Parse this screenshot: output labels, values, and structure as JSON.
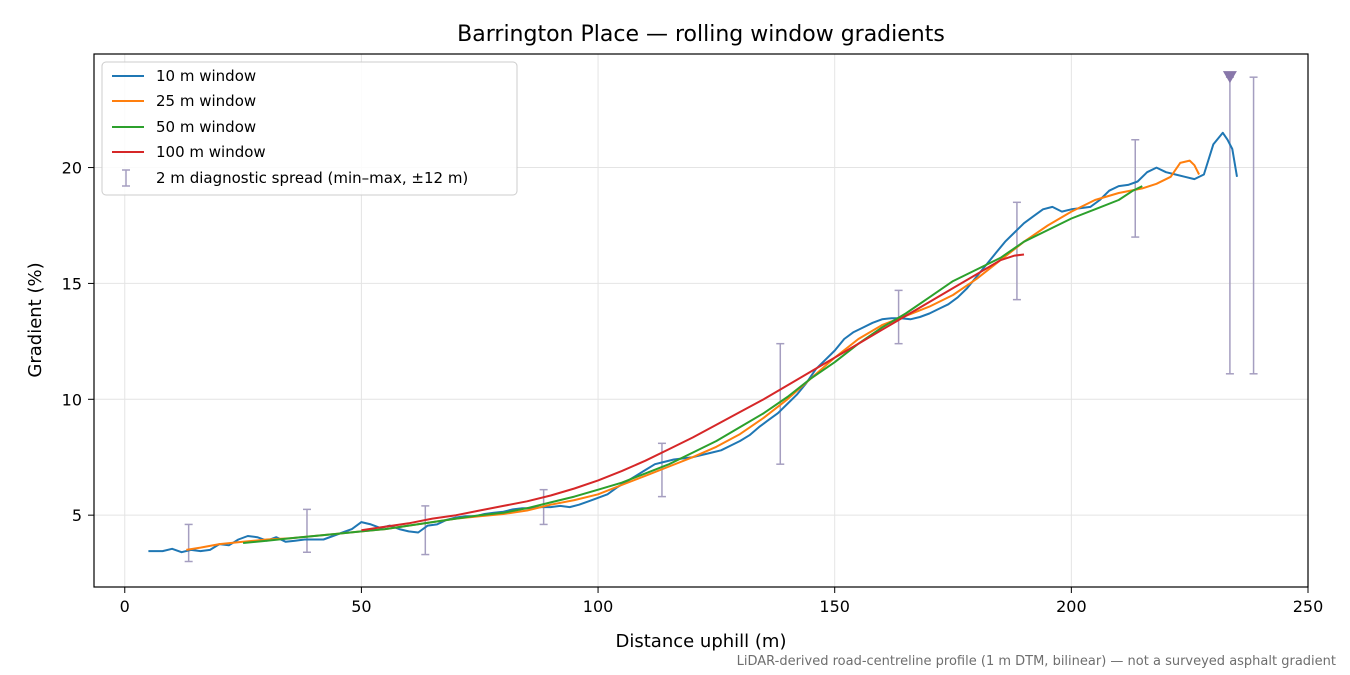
{
  "chart_data": {
    "type": "line",
    "title": "Barrington Place — rolling window gradients",
    "xlabel": "Distance uphill (m)",
    "ylabel": "Gradient (%)",
    "xlim": [
      -6.5,
      250
    ],
    "ylim": [
      1.9,
      24.9
    ],
    "x_ticks": [
      0,
      50,
      100,
      150,
      200,
      250
    ],
    "y_ticks": [
      5,
      10,
      15,
      20
    ],
    "grid": true,
    "legend_position": "top-left",
    "footnote": "LiDAR-derived road-centreline profile (1 m DTM, bilinear) — not a surveyed asphalt gradient",
    "series": [
      {
        "name": "10 m window",
        "color": "#1f77b4",
        "x": [
          5,
          8,
          10,
          12,
          14,
          16,
          18,
          20,
          22,
          24,
          26,
          28,
          30,
          32,
          34,
          36,
          38,
          40,
          42,
          44,
          46,
          48,
          50,
          52,
          54,
          56,
          58,
          60,
          62,
          64,
          66,
          68,
          70,
          72,
          74,
          76,
          78,
          80,
          82,
          84,
          86,
          88,
          90,
          92,
          94,
          96,
          98,
          100,
          102,
          104,
          106,
          108,
          110,
          112,
          114,
          116,
          118,
          120,
          122,
          124,
          126,
          128,
          130,
          132,
          134,
          136,
          138,
          140,
          142,
          144,
          146,
          148,
          150,
          152,
          154,
          156,
          158,
          160,
          162,
          164,
          166,
          168,
          170,
          172,
          174,
          176,
          178,
          180,
          182,
          184,
          186,
          188,
          190,
          192,
          194,
          196,
          198,
          200,
          202,
          204,
          206,
          208,
          210,
          212,
          214,
          216,
          218,
          220,
          222,
          224,
          226,
          228,
          230,
          232,
          233,
          234,
          235
        ],
        "values": [
          3.45,
          3.45,
          3.55,
          3.4,
          3.5,
          3.45,
          3.5,
          3.75,
          3.7,
          3.95,
          4.1,
          4.05,
          3.9,
          4.05,
          3.85,
          3.9,
          3.95,
          3.95,
          3.95,
          4.1,
          4.25,
          4.4,
          4.7,
          4.6,
          4.45,
          4.55,
          4.4,
          4.3,
          4.25,
          4.55,
          4.6,
          4.8,
          4.9,
          4.95,
          4.95,
          5.05,
          5.1,
          5.15,
          5.25,
          5.3,
          5.3,
          5.35,
          5.35,
          5.4,
          5.35,
          5.45,
          5.6,
          5.75,
          5.9,
          6.2,
          6.45,
          6.7,
          6.95,
          7.2,
          7.3,
          7.4,
          7.45,
          7.5,
          7.6,
          7.7,
          7.8,
          8.0,
          8.2,
          8.45,
          8.8,
          9.1,
          9.4,
          9.8,
          10.2,
          10.7,
          11.3,
          11.7,
          12.1,
          12.6,
          12.9,
          13.1,
          13.3,
          13.45,
          13.5,
          13.5,
          13.45,
          13.55,
          13.7,
          13.9,
          14.1,
          14.4,
          14.8,
          15.3,
          15.8,
          16.3,
          16.8,
          17.2,
          17.6,
          17.9,
          18.2,
          18.3,
          18.1,
          18.2,
          18.25,
          18.3,
          18.6,
          19.0,
          19.2,
          19.25,
          19.4,
          19.8,
          20.0,
          19.8,
          19.7,
          19.6,
          19.5,
          19.7,
          21.0,
          21.5,
          21.2,
          20.8,
          19.6
        ]
      },
      {
        "name": "25 m window",
        "color": "#ff7f0e",
        "x": [
          13,
          16,
          20,
          25,
          30,
          35,
          40,
          45,
          50,
          55,
          60,
          65,
          70,
          75,
          80,
          85,
          90,
          95,
          100,
          105,
          110,
          115,
          120,
          125,
          130,
          135,
          140,
          145,
          150,
          155,
          160,
          165,
          170,
          175,
          180,
          185,
          190,
          195,
          200,
          205,
          210,
          215,
          218,
          221,
          223,
          225,
          226,
          227
        ],
        "values": [
          3.5,
          3.6,
          3.75,
          3.85,
          3.95,
          4.0,
          4.1,
          4.2,
          4.3,
          4.4,
          4.55,
          4.7,
          4.85,
          4.95,
          5.05,
          5.2,
          5.45,
          5.65,
          5.9,
          6.3,
          6.7,
          7.1,
          7.5,
          7.95,
          8.5,
          9.2,
          10.0,
          10.9,
          11.8,
          12.6,
          13.2,
          13.6,
          14.0,
          14.5,
          15.2,
          16.0,
          16.8,
          17.5,
          18.1,
          18.6,
          18.9,
          19.1,
          19.3,
          19.6,
          20.2,
          20.3,
          20.1,
          19.7
        ]
      },
      {
        "name": "50 m window",
        "color": "#2ca02c",
        "x": [
          25,
          30,
          35,
          40,
          45,
          50,
          55,
          60,
          65,
          70,
          75,
          80,
          85,
          90,
          95,
          100,
          105,
          110,
          115,
          120,
          125,
          130,
          135,
          140,
          145,
          150,
          155,
          160,
          165,
          170,
          175,
          180,
          185,
          190,
          195,
          200,
          205,
          210,
          213,
          215
        ],
        "values": [
          3.8,
          3.9,
          4.0,
          4.1,
          4.2,
          4.3,
          4.4,
          4.55,
          4.7,
          4.85,
          5.0,
          5.1,
          5.3,
          5.55,
          5.8,
          6.1,
          6.4,
          6.8,
          7.2,
          7.7,
          8.2,
          8.8,
          9.4,
          10.1,
          10.9,
          11.6,
          12.4,
          13.1,
          13.7,
          14.4,
          15.1,
          15.6,
          16.1,
          16.8,
          17.3,
          17.8,
          18.2,
          18.6,
          19.0,
          19.2
        ]
      },
      {
        "name": "100 m window",
        "color": "#d62728",
        "x": [
          50,
          55,
          60,
          65,
          70,
          75,
          80,
          85,
          90,
          95,
          100,
          105,
          110,
          115,
          120,
          125,
          130,
          135,
          140,
          145,
          150,
          155,
          160,
          165,
          170,
          175,
          180,
          185,
          188,
          190
        ],
        "values": [
          4.35,
          4.5,
          4.65,
          4.85,
          5.0,
          5.2,
          5.4,
          5.6,
          5.85,
          6.15,
          6.5,
          6.9,
          7.35,
          7.85,
          8.35,
          8.9,
          9.45,
          10.0,
          10.6,
          11.2,
          11.8,
          12.4,
          13.0,
          13.6,
          14.2,
          14.8,
          15.4,
          16.0,
          16.2,
          16.25
        ]
      }
    ],
    "errorbars": {
      "name": "2 m diagnostic spread (min–max, ±12 m)",
      "color": "#a59ec0",
      "points": [
        {
          "x": 13.5,
          "low": 3.0,
          "high": 4.6
        },
        {
          "x": 38.5,
          "low": 3.4,
          "high": 5.25
        },
        {
          "x": 63.5,
          "low": 3.3,
          "high": 5.4
        },
        {
          "x": 88.5,
          "low": 4.6,
          "high": 6.1
        },
        {
          "x": 113.5,
          "low": 5.8,
          "high": 8.1
        },
        {
          "x": 138.5,
          "low": 7.2,
          "high": 12.4
        },
        {
          "x": 163.5,
          "low": 12.4,
          "high": 14.7
        },
        {
          "x": 188.5,
          "low": 14.3,
          "high": 18.5
        },
        {
          "x": 213.5,
          "low": 17.0,
          "high": 21.2
        },
        {
          "x": 233.5,
          "low": 11.1,
          "high": 23.9
        },
        {
          "x": 238.5,
          "low": 11.1,
          "high": 23.9
        }
      ]
    },
    "marker": {
      "x": 233.5,
      "y": 23.9,
      "symbol": "triangle-down",
      "color": "#8877aa"
    }
  }
}
